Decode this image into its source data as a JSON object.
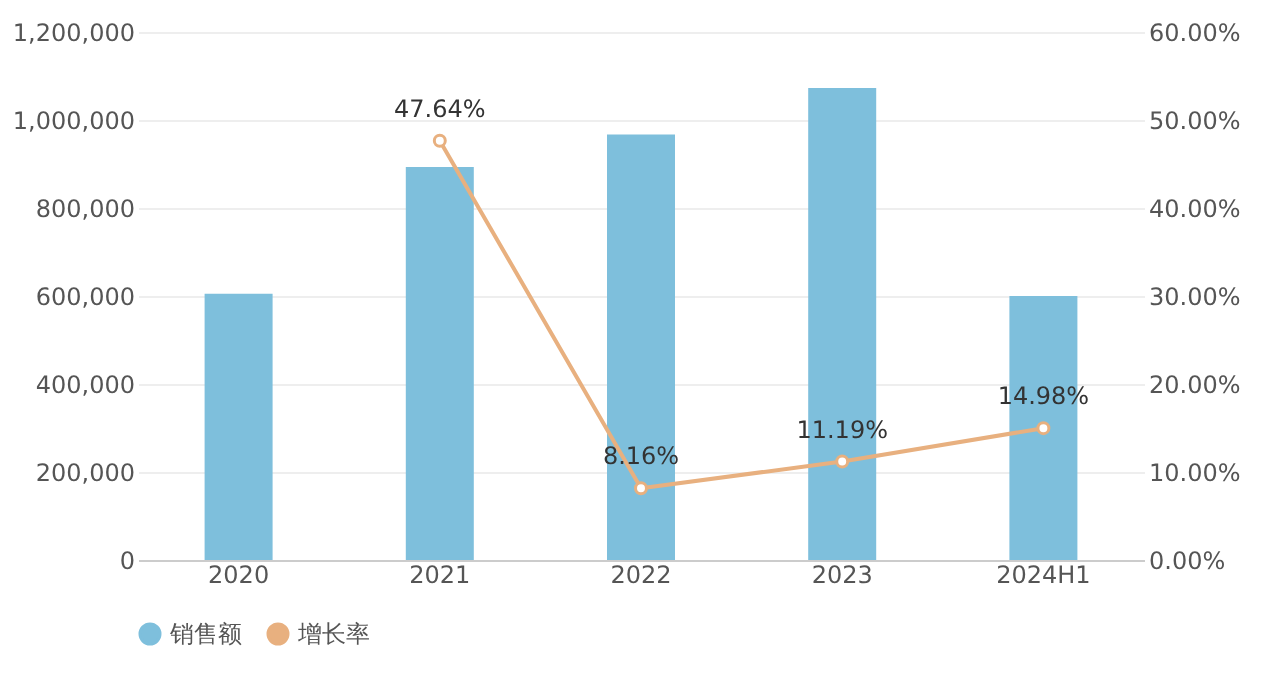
{
  "chart_data": {
    "type": "bar",
    "categories": [
      "2020",
      "2021",
      "2022",
      "2023",
      "2024H1"
    ],
    "series": [
      {
        "name": "销售额",
        "color": "#7ebfdc",
        "values": [
          605000,
          893000,
          967000,
          1073000,
          600000
        ]
      },
      {
        "name": "增长率",
        "type": "line",
        "axis": "y2",
        "color": "#e8b07f",
        "values": [
          null,
          47.64,
          8.16,
          11.19,
          14.98
        ],
        "value_labels": [
          null,
          "47.64%",
          "8.16%",
          "11.19%",
          "14.98%"
        ]
      }
    ],
    "ylim": [
      0,
      1200000
    ],
    "yticks": [
      {
        "value": 0,
        "label": "0"
      },
      {
        "value": 200000,
        "label": "200,000"
      },
      {
        "value": 400000,
        "label": "400,000"
      },
      {
        "value": 600000,
        "label": "600,000"
      },
      {
        "value": 800000,
        "label": "800,000"
      },
      {
        "value": 1000000,
        "label": "1,000,000"
      },
      {
        "value": 1200000,
        "label": "1,200,000"
      }
    ],
    "y2lim": [
      0,
      60
    ],
    "y2ticks": [
      {
        "value": 0,
        "label": "0.00%"
      },
      {
        "value": 10,
        "label": "10.00%"
      },
      {
        "value": 20,
        "label": "20.00%"
      },
      {
        "value": 30,
        "label": "30.00%"
      },
      {
        "value": 40,
        "label": "40.00%"
      },
      {
        "value": 50,
        "label": "50.00%"
      },
      {
        "value": 60,
        "label": "60.00%"
      }
    ],
    "grid": "y",
    "legend": "bottom",
    "marker": "circle"
  }
}
